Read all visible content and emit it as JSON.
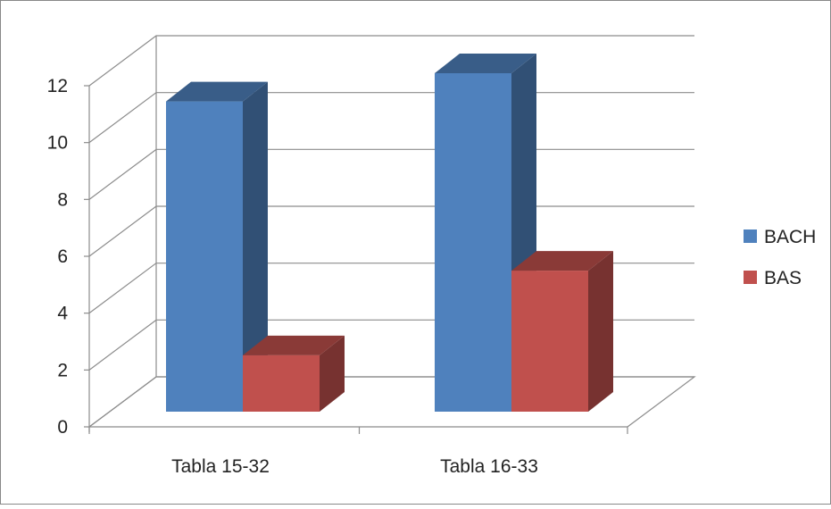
{
  "chart_data": {
    "type": "bar",
    "style": "3d-clustered-column",
    "categories": [
      "Tabla 15-32",
      "Tabla 16-33"
    ],
    "series": [
      {
        "name": "BACH",
        "values": [
          11,
          12
        ],
        "color": "#4F81BD"
      },
      {
        "name": "BAS",
        "values": [
          2,
          5
        ],
        "color": "#C0504D"
      }
    ],
    "yticks": [
      "0",
      "2",
      "4",
      "6",
      "8",
      "10",
      "12"
    ],
    "ylim": [
      0,
      12
    ],
    "grid": true,
    "legend_position": "right"
  }
}
